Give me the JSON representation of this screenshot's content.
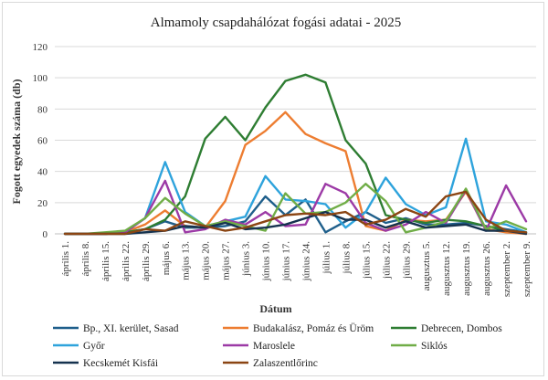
{
  "chart_data": {
    "type": "line",
    "title": "Almamoly csapdahálózat fogási adatai - 2025",
    "xlabel": "Dátum",
    "ylabel": "Fogott egyedek száma (db)",
    "ylim": [
      0,
      120
    ],
    "yticks": [
      0,
      20,
      40,
      60,
      80,
      100,
      120
    ],
    "grid": true,
    "legend_position": "bottom",
    "categories": [
      "április 1.",
      "április 8.",
      "április 15.",
      "április 22.",
      "április 29.",
      "május 6.",
      "május 13.",
      "május 20.",
      "május 27.",
      "június 3.",
      "június 10.",
      "június 17.",
      "június 24.",
      "július 1.",
      "július 8.",
      "július 15.",
      "július 22.",
      "július 29.",
      "augusztus 5.",
      "augusztus 12.",
      "augusztus 19.",
      "augusztus 26.",
      "szeptember 2.",
      "szeptember 9."
    ],
    "series": [
      {
        "name": "Bp., XI. kerület, Sasad",
        "color": "#1f5f8b",
        "values": [
          0,
          0,
          0,
          1,
          3,
          8,
          4,
          4,
          5,
          8,
          24,
          12,
          22,
          1,
          8,
          14,
          7,
          10,
          6,
          6,
          7,
          5,
          3,
          1
        ]
      },
      {
        "name": "Budakalász, Pomáz és Üröm",
        "color": "#ed7d31",
        "values": [
          0,
          0,
          0,
          1,
          6,
          15,
          5,
          4,
          21,
          57,
          66,
          78,
          64,
          58,
          53,
          5,
          2,
          9,
          8,
          9,
          27,
          3,
          1,
          0
        ]
      },
      {
        "name": "Debrecen, Dombos",
        "color": "#2e7d32",
        "values": [
          0,
          0,
          0,
          1,
          3,
          9,
          24,
          61,
          75,
          60,
          81,
          98,
          102,
          97,
          60,
          45,
          12,
          9,
          7,
          9,
          8,
          5,
          2,
          1
        ]
      },
      {
        "name": "Győr",
        "color": "#2ea3dc",
        "values": [
          0,
          0,
          0,
          1,
          10,
          46,
          14,
          5,
          8,
          11,
          37,
          22,
          21,
          19,
          4,
          14,
          36,
          19,
          12,
          17,
          61,
          8,
          6,
          1
        ]
      },
      {
        "name": "Maroslele",
        "color": "#9c3aa6",
        "values": [
          0,
          0,
          0,
          1,
          10,
          34,
          1,
          3,
          9,
          6,
          14,
          5,
          6,
          32,
          26,
          7,
          2,
          6,
          14,
          7,
          28,
          2,
          31,
          8
        ]
      },
      {
        "name": "Siklós",
        "color": "#70ad47",
        "values": [
          0,
          0,
          1,
          2,
          10,
          23,
          13,
          5,
          8,
          5,
          2,
          26,
          13,
          14,
          20,
          32,
          21,
          1,
          4,
          8,
          29,
          3,
          8,
          3
        ]
      },
      {
        "name": "Kecskemét Kisfái",
        "color": "#15324f",
        "values": [
          0,
          0,
          0,
          0,
          1,
          2,
          5,
          4,
          7,
          3,
          4,
          6,
          10,
          14,
          9,
          9,
          4,
          8,
          4,
          5,
          6,
          2,
          2,
          0
        ]
      },
      {
        "name": "Zalaszentlőrinc",
        "color": "#8b4513",
        "values": [
          0,
          0,
          0,
          0,
          3,
          2,
          8,
          5,
          2,
          4,
          8,
          12,
          13,
          12,
          14,
          6,
          9,
          16,
          11,
          24,
          27,
          9,
          2,
          1
        ]
      }
    ]
  }
}
